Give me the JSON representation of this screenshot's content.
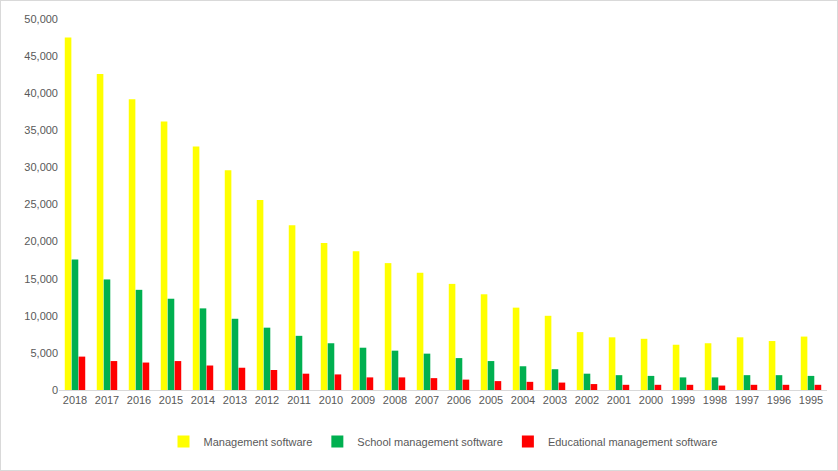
{
  "chart_data": {
    "type": "bar",
    "categories": [
      "2018",
      "2017",
      "2016",
      "2015",
      "2014",
      "2013",
      "2012",
      "2011",
      "2010",
      "2009",
      "2008",
      "2007",
      "2006",
      "2005",
      "2004",
      "2003",
      "2002",
      "2001",
      "2000",
      "1999",
      "1998",
      "1997",
      "1996",
      "1995"
    ],
    "series": [
      {
        "name": "Management software",
        "color": "#ffff00",
        "values": [
          47500,
          42600,
          39200,
          36200,
          32800,
          29600,
          25600,
          22200,
          19800,
          18700,
          17100,
          15800,
          14300,
          12900,
          11100,
          10000,
          7800,
          7100,
          6900,
          6100,
          6300,
          7100,
          6600,
          7200
        ]
      },
      {
        "name": "School management software",
        "color": "#00b050",
        "values": [
          17600,
          14900,
          13500,
          12300,
          11000,
          9600,
          8400,
          7300,
          6300,
          5700,
          5300,
          4900,
          4300,
          3900,
          3200,
          2800,
          2200,
          2000,
          1900,
          1700,
          1700,
          2000,
          2000,
          1900
        ]
      },
      {
        "name": "Educational management software",
        "color": "#ff0000",
        "values": [
          4500,
          3900,
          3700,
          3900,
          3300,
          3000,
          2700,
          2200,
          2100,
          1700,
          1700,
          1600,
          1400,
          1200,
          1100,
          1000,
          800,
          700,
          700,
          700,
          600,
          700,
          700,
          700
        ]
      }
    ],
    "ylim": [
      0,
      50000
    ],
    "yticks": [
      0,
      {
        "value": 5000,
        "label": "5,000"
      },
      {
        "value": 10000,
        "label": "10,000"
      },
      {
        "value": 15000,
        "label": "15,000"
      },
      {
        "value": 20000,
        "label": "20,000"
      },
      {
        "value": 25000,
        "label": "25,000"
      },
      {
        "value": 30000,
        "label": "30,000"
      },
      {
        "value": 35000,
        "label": "35,000"
      },
      {
        "value": 40000,
        "label": "40,000"
      },
      {
        "value": 45000,
        "label": "45,000"
      },
      {
        "value": 50000,
        "label": "50,000"
      }
    ],
    "grid": false,
    "legend": "bottom"
  }
}
